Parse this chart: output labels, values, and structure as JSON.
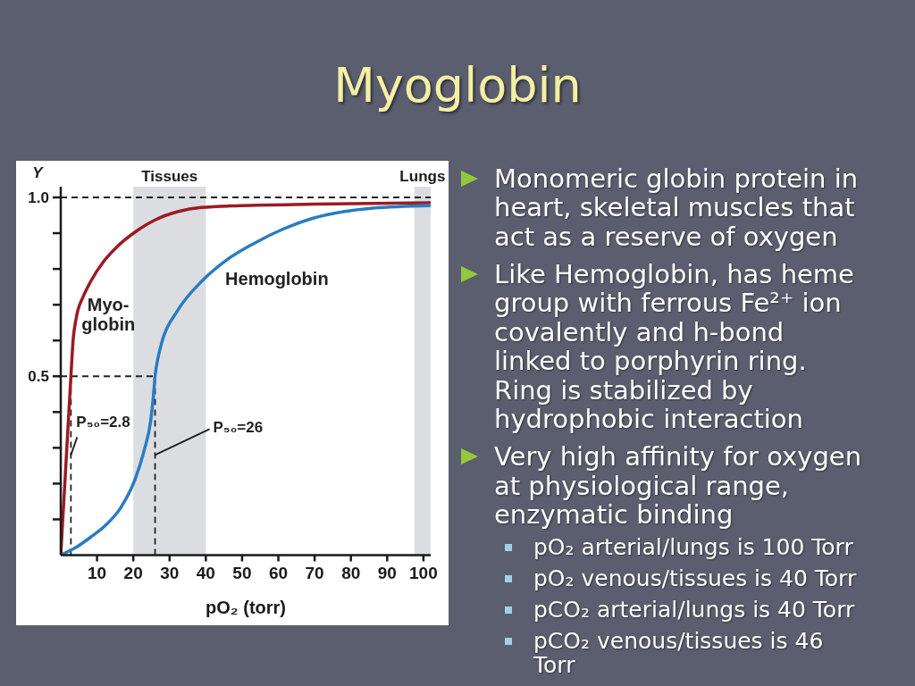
{
  "chart_data": {
    "type": "line",
    "title": "Myoglobin",
    "xlabel": "pO₂ (torr)",
    "ylabel": "Y",
    "xlim": [
      0,
      102
    ],
    "ylim": [
      0,
      1.03
    ],
    "xticks": [
      10,
      20,
      30,
      40,
      50,
      60,
      70,
      80,
      90,
      100
    ],
    "yticks": [
      {
        "value": 0.1,
        "label": null
      },
      {
        "value": 0.2,
        "label": null
      },
      {
        "value": 0.3,
        "label": null
      },
      {
        "value": 0.4,
        "label": null
      },
      0.5,
      {
        "value": 0.6,
        "label": null
      },
      {
        "value": 0.7,
        "label": null
      },
      {
        "value": 0.8,
        "label": null
      },
      {
        "value": 0.9,
        "label": null
      },
      {
        "value": 1,
        "label": "1.0"
      }
    ],
    "series": [
      {
        "name": "Myo-\nglobin",
        "color": "#9b1b22",
        "x": [
          0,
          1.4,
          2.8,
          3.4,
          4.3,
          6.2,
          8.2,
          11.9,
          15.6,
          20.6,
          26,
          32.2,
          38.7,
          49.4,
          70,
          101.7
        ],
        "values": [
          0,
          0.25,
          0.5,
          0.6,
          0.665,
          0.723,
          0.764,
          0.822,
          0.863,
          0.904,
          0.937,
          0.96,
          0.972,
          0.977,
          0.981,
          0.985
        ]
      },
      {
        "name": "Hemoglobin",
        "color": "#2a7cc2",
        "x": [
          0,
          4.1,
          8.2,
          12.3,
          16.5,
          20.6,
          23,
          24.8,
          25.5,
          26,
          27,
          28,
          32.1,
          38.7,
          45.3,
          53.2,
          61.4,
          69.6,
          77.9,
          86.1,
          101.7
        ],
        "values": [
          0,
          0.021,
          0.05,
          0.083,
          0.132,
          0.215,
          0.293,
          0.376,
          0.44,
          0.5,
          0.56,
          0.6,
          0.682,
          0.764,
          0.822,
          0.871,
          0.912,
          0.942,
          0.96,
          0.97,
          0.977
        ]
      }
    ],
    "bands": [
      {
        "axis": "x",
        "from": 20,
        "to": 40,
        "label": "Tissues",
        "color": "#dcdde1"
      },
      {
        "axis": "x",
        "from": 97.5,
        "to": 102,
        "label": "Lungs",
        "color": "#dcdde1"
      }
    ],
    "ref_lines": [
      {
        "axis": "y",
        "value": 1,
        "line_style": "dashed",
        "color": "#222222"
      },
      {
        "axis": "y",
        "value": 0.5,
        "line_style": "dashed",
        "color": "#222222"
      },
      {
        "axis": "x",
        "value": 2.8,
        "line_style": "dashed",
        "color": "#222222"
      },
      {
        "axis": "x",
        "value": 26,
        "line_style": "dashed",
        "color": "#222222"
      }
    ],
    "annotations": [
      {
        "text": "P₅₀=2.8",
        "x": 2.8,
        "y": 0.28
      },
      {
        "text": "P₅₀=26",
        "x": 26,
        "y": 0.28
      },
      "Monomeric globin protein in heart, skeletal muscles that act as a reserve of oxygen",
      "Like Hemoglobin, has heme group with ferrous Fe²⁺ ion covalently and h-bond linked to porphyrin ring. Ring is stabilized by hydrophobic interaction",
      "Very high affinity for oxygen at physiological range, enzymatic binding",
      "pO₂ arterial/lungs is 100 Torr",
      "pO₂ venous/tissues is 40 Torr",
      "pCO₂ arterial/lungs is 40 Torr",
      "pCO₂ venous/tissues is 46 Torr"
    ]
  }
}
